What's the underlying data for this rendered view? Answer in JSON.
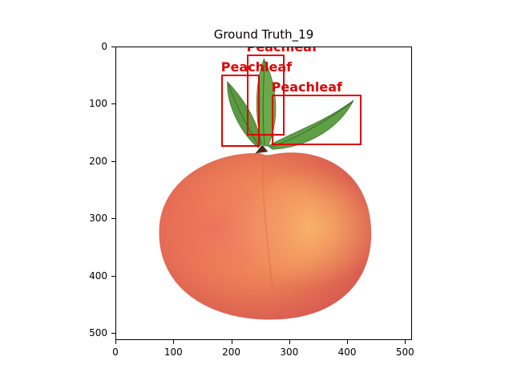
{
  "figure": {
    "title": "Ground Truth_19"
  },
  "axes": {
    "x_ticks": [
      "0",
      "100",
      "200",
      "300",
      "400",
      "500"
    ],
    "y_ticks": [
      "0",
      "100",
      "200",
      "300",
      "400",
      "500"
    ],
    "x_range": [
      0,
      512
    ],
    "y_range": [
      512,
      0
    ]
  },
  "image": {
    "subject": "peach with leaves on white background",
    "box_color": "#e00000"
  },
  "annotations": [
    {
      "label": "Peachleaf",
      "x0": 225,
      "y0": 13,
      "x1": 291,
      "y1": 154
    },
    {
      "label": "Peachleaf",
      "x0": 181,
      "y0": 47,
      "x1": 248,
      "y1": 173
    },
    {
      "label": "Peachleaf",
      "x0": 268,
      "y0": 82,
      "x1": 423,
      "y1": 171
    }
  ]
}
